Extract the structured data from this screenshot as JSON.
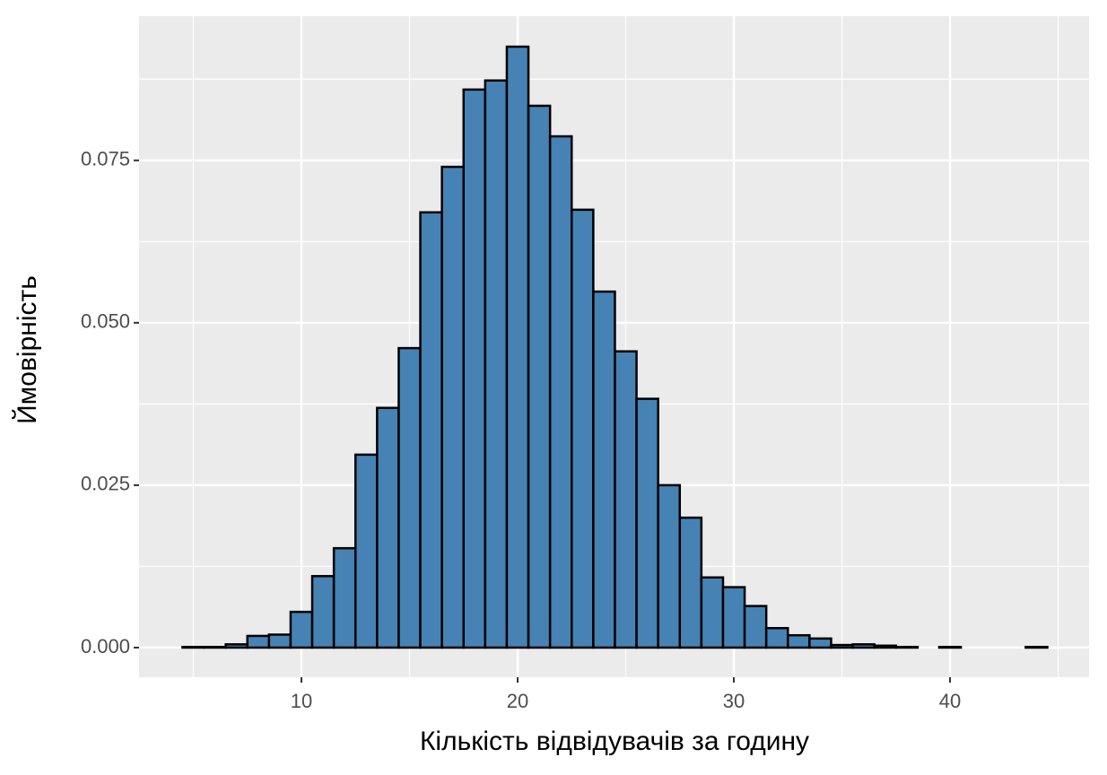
{
  "chart_data": {
    "type": "histogram",
    "x_label": "Кількість відвідувачів за годину",
    "y_label": "Ймовірність",
    "bins": [
      4.5,
      5.5,
      6.5,
      7.5,
      8.5,
      9.5,
      10.5,
      11.5,
      12.5,
      13.5,
      14.5,
      15.5,
      16.5,
      17.5,
      18.5,
      19.5,
      20.5,
      21.5,
      22.5,
      23.5,
      24.5,
      25.5,
      26.5,
      27.5,
      28.5,
      29.5,
      30.5,
      31.5,
      32.5,
      33.5,
      34.5,
      35.5,
      36.5,
      37.5,
      38.5,
      39.5,
      40.5,
      41.5,
      42.5,
      43.5,
      44.5
    ],
    "values": [
      0.0001,
      0.0001,
      0.0005,
      0.0018,
      0.002,
      0.0055,
      0.011,
      0.0153,
      0.0297,
      0.0369,
      0.0461,
      0.067,
      0.074,
      0.0859,
      0.0873,
      0.0925,
      0.0834,
      0.0787,
      0.0674,
      0.0548,
      0.0456,
      0.0383,
      0.025,
      0.02,
      0.0108,
      0.0093,
      0.0064,
      0.003,
      0.0019,
      0.0014,
      0.0004,
      0.0005,
      0.0003,
      0.0001,
      0,
      0.0001,
      0,
      0,
      0,
      0.0001
    ],
    "color": "#4682b4",
    "edge_color": "#000000",
    "xlim": [
      2.49,
      46.43
    ],
    "ylim": [
      -0.00456,
      0.0972
    ],
    "xticks": [
      10,
      20,
      30,
      40
    ],
    "yticks": [
      {
        "value": 0,
        "label": "0.000"
      },
      {
        "value": 0.025,
        "label": "0.025"
      },
      {
        "value": 0.05,
        "label": "0.050"
      },
      {
        "value": 0.075,
        "label": "0.075"
      }
    ],
    "grid": true,
    "minor_grid": true
  }
}
